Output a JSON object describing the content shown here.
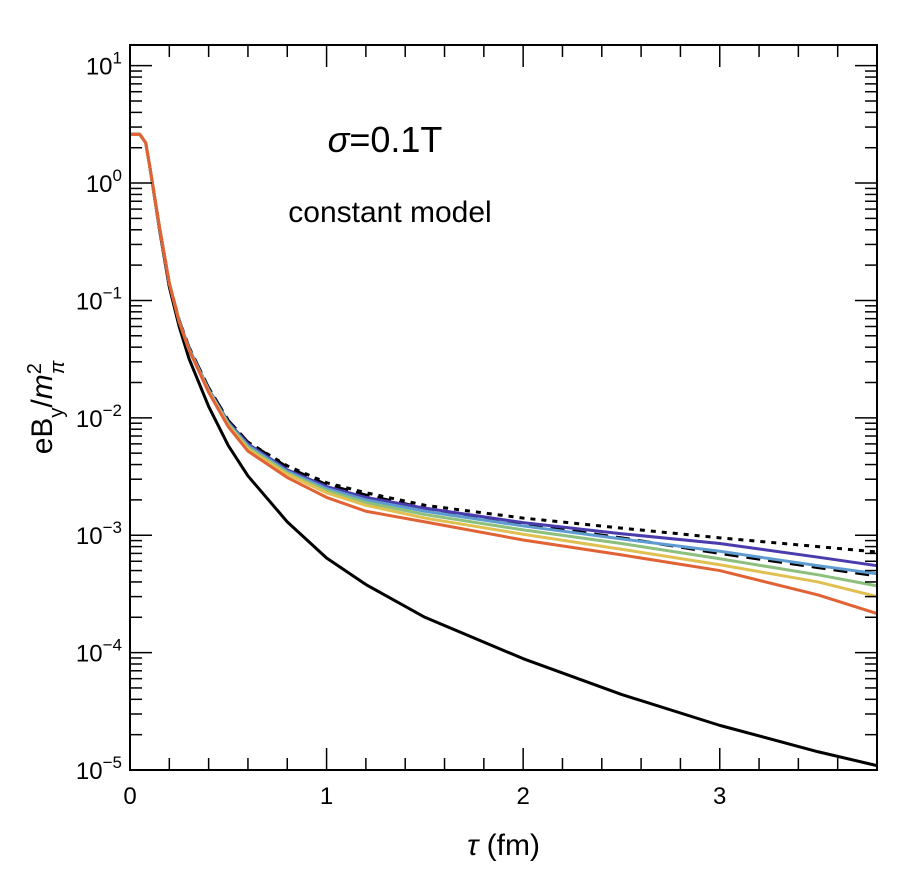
{
  "chart_data": {
    "type": "line",
    "title": "",
    "xlabel": "τ (fm)",
    "ylabel_html": "eB<tspan baseline-shift=\"sub\" font-size=\"20\">y</tspan>/<tspan font-style=\"italic\">m</tspan><tspan baseline-shift=\"super\" font-size=\"20\">2</tspan><tspan baseline-shift=\"sub\" font-size=\"20\" font-style=\"italic\">π</tspan>",
    "ylabel_parts": {
      "e": "e",
      "B": "B",
      "y": "y",
      "slash": "/",
      "m": "m",
      "sup": "2",
      "sub": "π"
    },
    "xlim": [
      0,
      3.8
    ],
    "ylim": [
      1e-05,
      15
    ],
    "yscale": "log",
    "x_ticks": [
      0,
      1,
      2,
      3
    ],
    "x_tick_labels": [
      "0",
      "1",
      "2",
      "3"
    ],
    "y_ticks": [
      1e-05,
      0.0001,
      0.001,
      0.01,
      0.1,
      1.0,
      10.0
    ],
    "y_tick_bases": [
      "10",
      "10",
      "10",
      "10",
      "10",
      "10",
      "10"
    ],
    "y_tick_exps": [
      "−5",
      "−4",
      "−3",
      "−2",
      "−1",
      "0",
      "1"
    ],
    "annotations": {
      "sigma_symbol": "σ",
      "sigma_value": "=0.1T",
      "model": "constant model"
    },
    "series": [
      {
        "color": "#000000",
        "style": "solid",
        "x": [
          0,
          0.05,
          0.08,
          0.1,
          0.15,
          0.2,
          0.25,
          0.3,
          0.4,
          0.5,
          0.6,
          0.8,
          1.0,
          1.2,
          1.5,
          2.0,
          2.5,
          3.0,
          3.5,
          3.8
        ],
        "y": [
          2.6,
          2.6,
          2.2,
          1.4,
          0.4,
          0.13,
          0.06,
          0.032,
          0.0125,
          0.0058,
          0.0032,
          0.0013,
          0.00064,
          0.00038,
          0.0002,
          8.88e-05,
          4.4e-05,
          2.4e-05,
          1.43e-05,
          1.09e-05
        ]
      },
      {
        "color": "#000000",
        "style": "dotted",
        "x": [
          0,
          0.05,
          0.08,
          0.1,
          0.15,
          0.2,
          0.25,
          0.3,
          0.4,
          0.5,
          0.6,
          0.8,
          1.0,
          1.2,
          1.5,
          2.0,
          2.5,
          3.0,
          3.5,
          3.8
        ],
        "y": [
          2.6,
          2.6,
          2.2,
          1.4,
          0.42,
          0.14,
          0.068,
          0.04,
          0.018,
          0.0095,
          0.0062,
          0.0039,
          0.0028,
          0.0023,
          0.0018,
          0.0014,
          0.00115,
          0.00095,
          0.0008,
          0.00072
        ]
      },
      {
        "color": "#000000",
        "style": "dashed",
        "x": [
          0,
          0.05,
          0.08,
          0.1,
          0.15,
          0.2,
          0.25,
          0.3,
          0.4,
          0.5,
          0.6,
          0.8,
          1.0,
          1.2,
          1.5,
          2.0,
          2.5,
          3.0,
          3.5,
          3.8
        ],
        "y": [
          2.6,
          2.6,
          2.2,
          1.4,
          0.42,
          0.14,
          0.068,
          0.04,
          0.018,
          0.0095,
          0.0062,
          0.0038,
          0.0027,
          0.0022,
          0.0017,
          0.00125,
          0.00095,
          0.0007,
          0.00053,
          0.00045
        ]
      },
      {
        "color": "#4b3cae",
        "style": "solid",
        "x": [
          0,
          0.05,
          0.08,
          0.1,
          0.15,
          0.2,
          0.25,
          0.3,
          0.4,
          0.5,
          0.6,
          0.8,
          1.0,
          1.2,
          1.5,
          2.0,
          2.5,
          3.0,
          3.5,
          3.8
        ],
        "y": [
          2.6,
          2.6,
          2.2,
          1.4,
          0.42,
          0.14,
          0.067,
          0.039,
          0.0175,
          0.0092,
          0.006,
          0.0036,
          0.0026,
          0.0021,
          0.0017,
          0.00128,
          0.00103,
          0.00085,
          0.00065,
          0.00055
        ]
      },
      {
        "color": "#5d9bd0",
        "style": "solid",
        "x": [
          0,
          0.05,
          0.08,
          0.1,
          0.15,
          0.2,
          0.25,
          0.3,
          0.4,
          0.5,
          0.6,
          0.8,
          1.0,
          1.2,
          1.5,
          2.0,
          2.5,
          3.0,
          3.5,
          3.8
        ],
        "y": [
          2.6,
          2.6,
          2.2,
          1.4,
          0.42,
          0.14,
          0.067,
          0.039,
          0.0172,
          0.009,
          0.0058,
          0.0035,
          0.0025,
          0.002,
          0.0016,
          0.0012,
          0.00093,
          0.00073,
          0.00055,
          0.00047
        ]
      },
      {
        "color": "#8cc07c",
        "style": "solid",
        "x": [
          0,
          0.05,
          0.08,
          0.1,
          0.15,
          0.2,
          0.25,
          0.3,
          0.4,
          0.5,
          0.6,
          0.8,
          1.0,
          1.2,
          1.5,
          2.0,
          2.5,
          3.0,
          3.5,
          3.8
        ],
        "y": [
          2.6,
          2.6,
          2.2,
          1.4,
          0.42,
          0.14,
          0.066,
          0.038,
          0.017,
          0.0088,
          0.0056,
          0.0034,
          0.0024,
          0.0019,
          0.0015,
          0.00111,
          0.00085,
          0.00063,
          0.00046,
          0.00037
        ]
      },
      {
        "color": "#e0c050",
        "style": "solid",
        "x": [
          0,
          0.05,
          0.08,
          0.1,
          0.15,
          0.2,
          0.25,
          0.3,
          0.4,
          0.5,
          0.6,
          0.8,
          1.0,
          1.2,
          1.5,
          2.0,
          2.5,
          3.0,
          3.5,
          3.8
        ],
        "y": [
          2.6,
          2.6,
          2.2,
          1.4,
          0.42,
          0.14,
          0.066,
          0.038,
          0.0168,
          0.0086,
          0.0054,
          0.0033,
          0.0023,
          0.0018,
          0.0014,
          0.00102,
          0.00076,
          0.00056,
          0.0004,
          0.0003
        ]
      },
      {
        "color": "#e06235",
        "style": "solid",
        "x": [
          0,
          0.05,
          0.08,
          0.1,
          0.15,
          0.2,
          0.25,
          0.3,
          0.4,
          0.5,
          0.6,
          0.8,
          1.0,
          1.2,
          1.5,
          2.0,
          2.5,
          3.0,
          3.5,
          3.8
        ],
        "y": [
          2.6,
          2.6,
          2.2,
          1.4,
          0.42,
          0.14,
          0.066,
          0.038,
          0.0165,
          0.0084,
          0.0052,
          0.0031,
          0.0021,
          0.0016,
          0.0013,
          0.00091,
          0.00068,
          0.0005,
          0.00031,
          0.000215
        ]
      }
    ]
  }
}
